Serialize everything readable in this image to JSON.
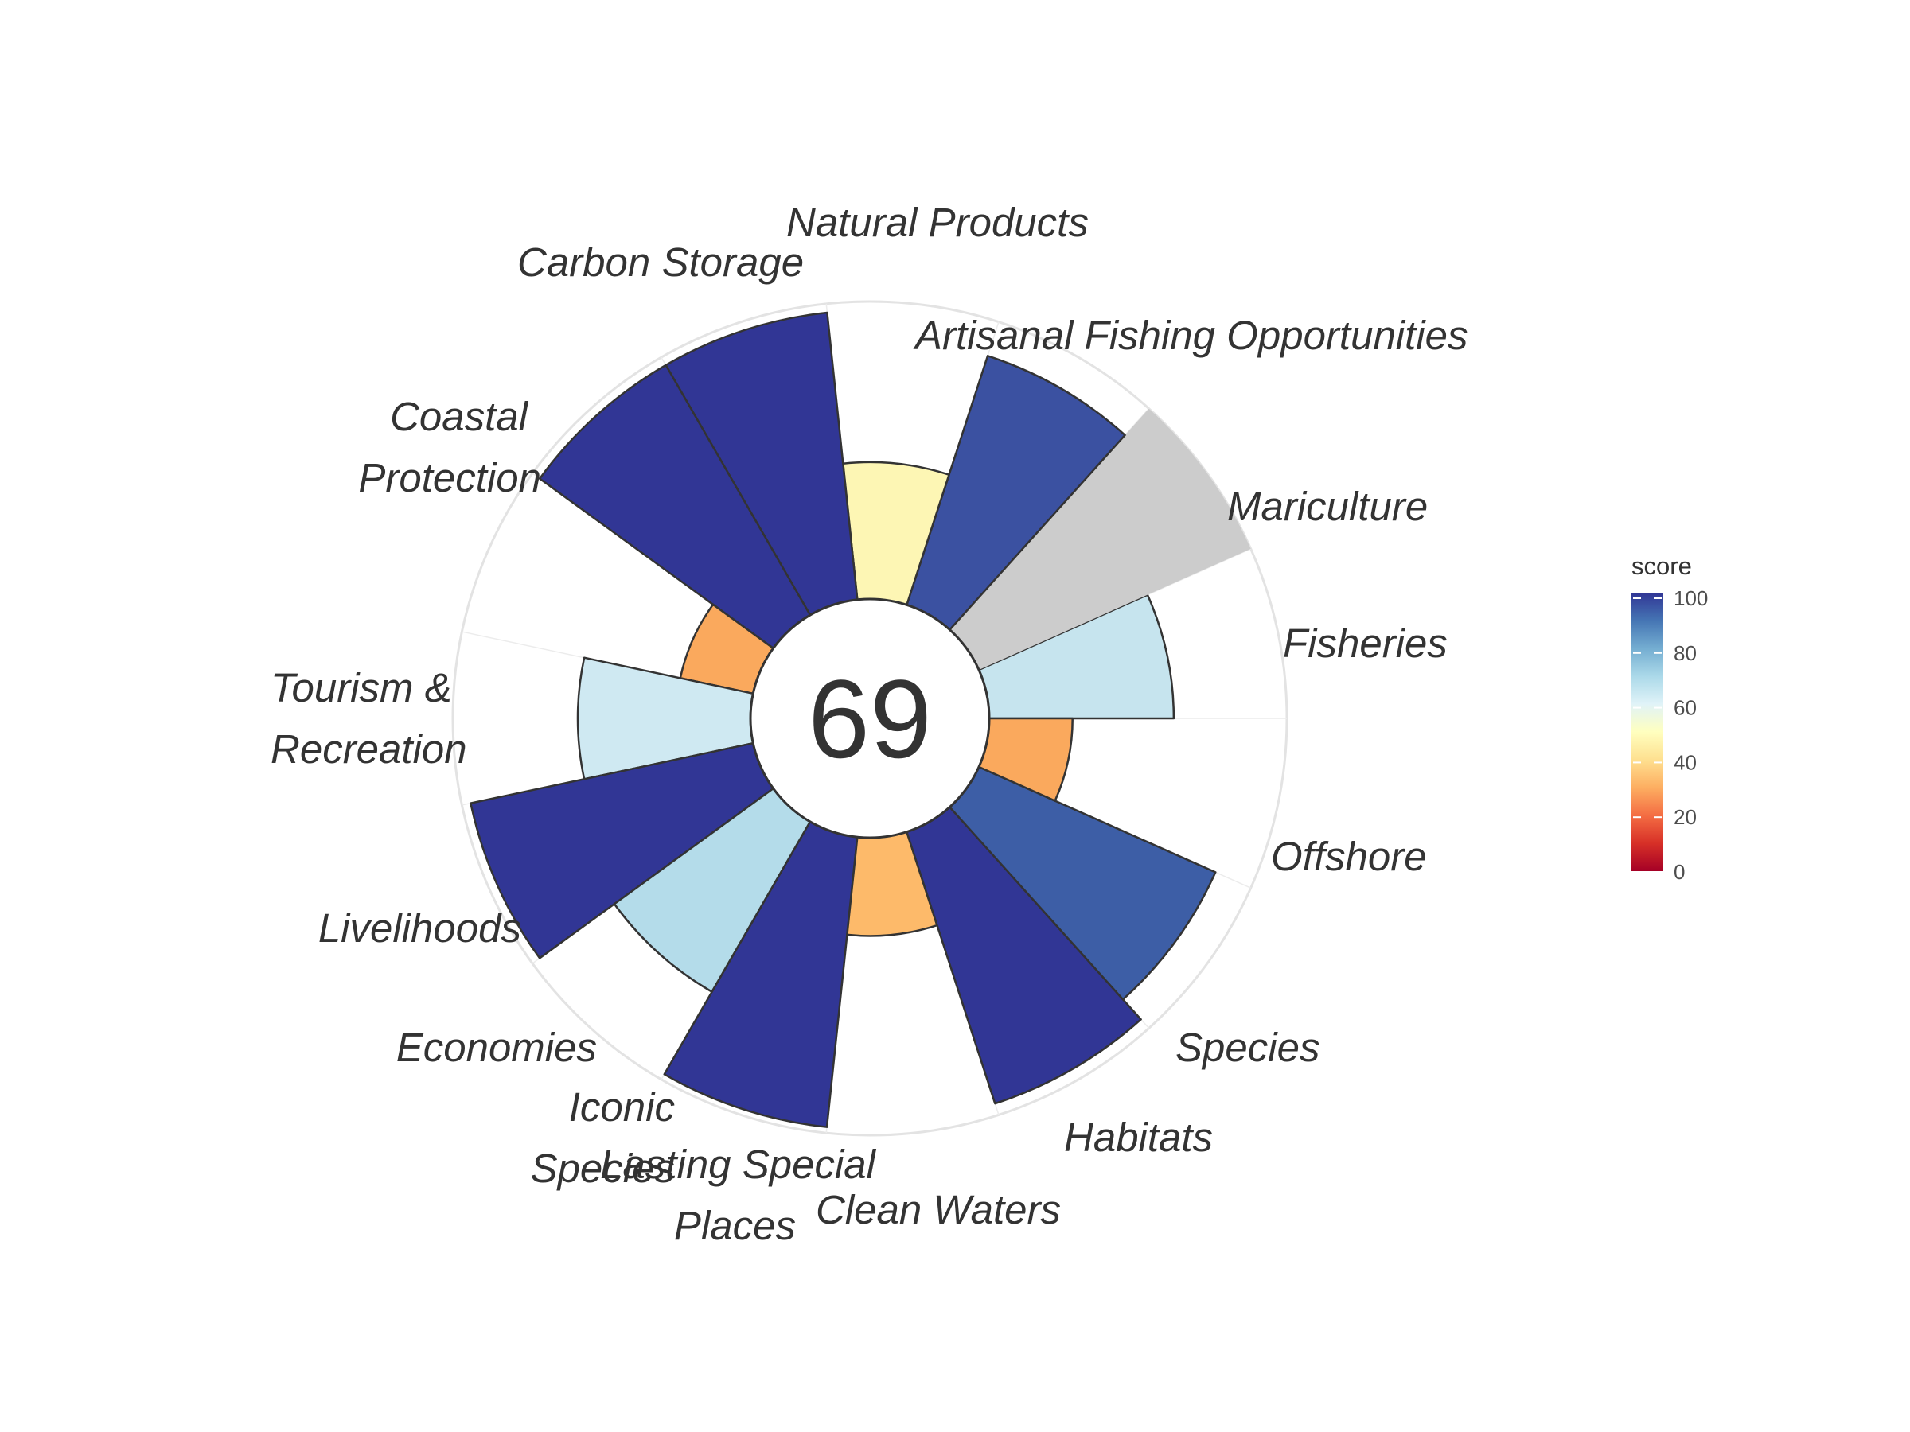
{
  "chart_data": {
    "type": "polar-bar",
    "center_score": "69",
    "goals": [
      {
        "label": "Fisheries",
        "value": 62,
        "color": "#c6e4ee"
      },
      {
        "label": "Mariculture",
        "value": null,
        "color": "#cccccc"
      },
      {
        "label": "Artisanal Fishing Opportunities",
        "value": 88,
        "color": "#3b51a1"
      },
      {
        "label": "Natural Products",
        "value": 46,
        "color": "#fdf6b4"
      },
      {
        "label": "Carbon Storage",
        "value": 97,
        "color": "#313695"
      },
      {
        "label": "Coastal Protection",
        "value": 97,
        "color": "#313695"
      },
      {
        "label": "Tourism & Recreation",
        "value": 25,
        "color": "#faa95d"
      },
      {
        "label": "Livelihoods",
        "value": 58,
        "color": "#cfe9f2"
      },
      {
        "label": "Economies",
        "value": 97,
        "color": "#313695"
      },
      {
        "label": "Iconic Species",
        "value": 66,
        "color": "#b4dcea"
      },
      {
        "label": "Lasting Special Places",
        "value": 98,
        "color": "#313695"
      },
      {
        "label": "Clean Waters",
        "value": 33,
        "color": "#fdba6a"
      },
      {
        "label": "Habitats",
        "value": 96,
        "color": "#313695"
      },
      {
        "label": "Species",
        "value": 87,
        "color": "#3d5ea6"
      },
      {
        "label": "Offshore",
        "value": 28,
        "color": "#faa95d"
      }
    ],
    "legend": {
      "title": "score",
      "ticks": [
        "100",
        "80",
        "60",
        "40",
        "20",
        "0"
      ],
      "colors": [
        "#a50026",
        "#d73027",
        "#f46d43",
        "#fdae61",
        "#fee090",
        "#ffffbf",
        "#e0f3f8",
        "#abd9e9",
        "#74add1",
        "#4575b4",
        "#313695"
      ]
    }
  }
}
